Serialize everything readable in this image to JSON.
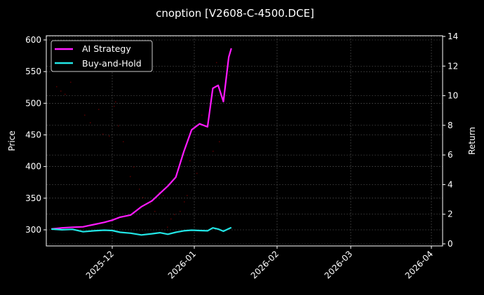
{
  "chart_data": {
    "type": "line",
    "title": "cnoption [V2608-C-4500.DCE]",
    "xlabel": "",
    "ylabel": "Price",
    "ylabel_right": "Return",
    "ylim": [
      274,
      605
    ],
    "ylim_right": [
      -0.1,
      14.1
    ],
    "x_ticks": [
      "2025-12",
      "2026-01",
      "2026-02",
      "2026-03",
      "2026-04"
    ],
    "y_ticks": [
      300,
      350,
      400,
      450,
      500,
      550,
      600
    ],
    "y_ticks_right": [
      0,
      2,
      4,
      6,
      8,
      10,
      12,
      14
    ],
    "grid": true,
    "legend_position": "upper left",
    "background": "#000000",
    "x": [
      "2025-11-08",
      "2025-11-12",
      "2025-11-16",
      "2025-11-20",
      "2025-11-24",
      "2025-11-28",
      "2025-12-01",
      "2025-12-04",
      "2025-12-08",
      "2025-12-12",
      "2025-12-16",
      "2025-12-19",
      "2025-12-22",
      "2025-12-25",
      "2025-12-28",
      "2025-12-31",
      "2026-01-03",
      "2026-01-06",
      "2026-01-08",
      "2026-01-10",
      "2026-01-12",
      "2026-01-14",
      "2026-01-15"
    ],
    "series": [
      {
        "name": "AI Strategy",
        "color": "#ff1aff",
        "axis": "right",
        "values": [
          1.0,
          1.08,
          1.12,
          1.15,
          1.3,
          1.45,
          1.6,
          1.8,
          1.95,
          2.5,
          2.9,
          3.4,
          3.9,
          4.5,
          6.2,
          7.7,
          8.1,
          7.9,
          10.5,
          10.7,
          9.6,
          12.6,
          13.2
        ]
      },
      {
        "name": "Buy-and-Hold",
        "color": "#22e5e5",
        "axis": "right",
        "values": [
          1.0,
          0.95,
          0.98,
          0.82,
          0.88,
          0.92,
          0.9,
          0.78,
          0.72,
          0.6,
          0.68,
          0.75,
          0.65,
          0.78,
          0.88,
          0.92,
          0.9,
          0.88,
          1.08,
          1.0,
          0.85,
          1.02,
          1.1
        ]
      }
    ],
    "scatter_points": {
      "name": "price markers (faint red)",
      "color": "#5a0000",
      "axis": "left",
      "points": [
        [
          80,
          527
        ],
        [
          86,
          520
        ],
        [
          92,
          515
        ],
        [
          100,
          534
        ],
        [
          120,
          482
        ],
        [
          128,
          470
        ],
        [
          140,
          491
        ],
        [
          146,
          452
        ],
        [
          155,
          449
        ],
        [
          162,
          496
        ],
        [
          164,
          503
        ],
        [
          168,
          465
        ],
        [
          175,
          440
        ],
        [
          185,
          385
        ],
        [
          190,
          400
        ],
        [
          198,
          365
        ],
        [
          203,
          352
        ],
        [
          214,
          342
        ],
        [
          220,
          330
        ],
        [
          226,
          360
        ],
        [
          232,
          355
        ],
        [
          238,
          305
        ],
        [
          243,
          318
        ],
        [
          248,
          325
        ],
        [
          256,
          330
        ],
        [
          262,
          345
        ],
        [
          266,
          355
        ],
        [
          270,
          410
        ],
        [
          280,
          390
        ],
        [
          287,
          482
        ],
        [
          296,
          470
        ],
        [
          303,
          425
        ],
        [
          308,
          565
        ],
        [
          312,
          440
        ],
        [
          320,
          560
        ],
        [
          326,
          545
        ]
      ]
    }
  },
  "legend": {
    "items": [
      {
        "label": "AI Strategy",
        "color": "#ff1aff"
      },
      {
        "label": "Buy-and-Hold",
        "color": "#22e5e5"
      }
    ]
  }
}
